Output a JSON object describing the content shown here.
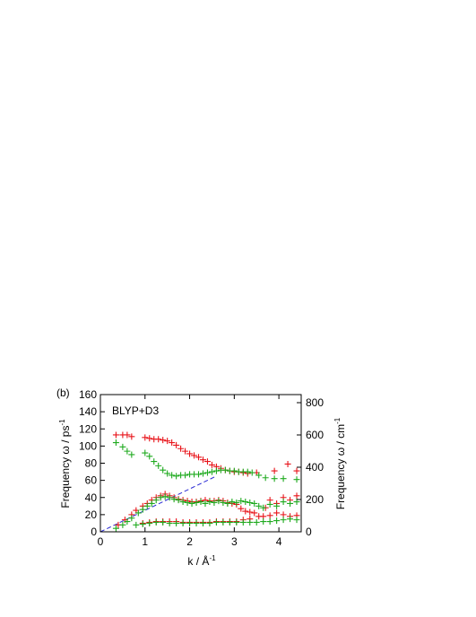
{
  "chart_data": {
    "type": "scatter",
    "panel_label": "(b)",
    "annotation": "BLYP+D3",
    "xlabel": "k / Å",
    "xlabel_sup": "-1",
    "ylabel": "Frequency ω / ps",
    "ylabel_sup": "-1",
    "y2label": "Frequency ω / cm",
    "y2label_sup": "-1",
    "xlim": [
      0,
      4.5
    ],
    "ylim": [
      0,
      160
    ],
    "y2lim": [
      0,
      850
    ],
    "xticks": [
      0,
      1,
      2,
      3,
      4
    ],
    "yticks": [
      0,
      20,
      40,
      60,
      80,
      100,
      120,
      140,
      160
    ],
    "y2ticks": [
      0,
      200,
      400,
      600,
      800
    ],
    "grid": false,
    "series": [
      {
        "color": "#e8141a",
        "marker": "plus",
        "points": [
          [
            0.35,
            113
          ],
          [
            0.5,
            113
          ],
          [
            0.6,
            113
          ],
          [
            0.7,
            111
          ],
          [
            0.4,
            8
          ],
          [
            0.55,
            14
          ],
          [
            0.7,
            20
          ],
          [
            0.8,
            25
          ],
          [
            0.95,
            30
          ],
          [
            1.05,
            33
          ],
          [
            1.15,
            37
          ],
          [
            1.25,
            40
          ],
          [
            1.35,
            42
          ],
          [
            1.45,
            44
          ],
          [
            1.55,
            42
          ],
          [
            1.65,
            40
          ],
          [
            1.75,
            38
          ],
          [
            1.85,
            37
          ],
          [
            1.95,
            36
          ],
          [
            2.05,
            35
          ],
          [
            2.15,
            35
          ],
          [
            2.25,
            36
          ],
          [
            2.35,
            37
          ],
          [
            2.45,
            36
          ],
          [
            2.55,
            36
          ],
          [
            2.65,
            37
          ],
          [
            2.75,
            36
          ],
          [
            2.85,
            34
          ],
          [
            2.95,
            33
          ],
          [
            3.05,
            32
          ],
          [
            3.15,
            27
          ],
          [
            3.25,
            24
          ],
          [
            3.35,
            23
          ],
          [
            3.45,
            22
          ],
          [
            3.55,
            18
          ],
          [
            3.65,
            18
          ],
          [
            3.8,
            19
          ],
          [
            3.95,
            22
          ],
          [
            4.1,
            20
          ],
          [
            4.25,
            18
          ],
          [
            4.4,
            19
          ],
          [
            1.0,
            110
          ],
          [
            1.1,
            109
          ],
          [
            1.2,
            108
          ],
          [
            1.3,
            108
          ],
          [
            1.4,
            107
          ],
          [
            1.5,
            106
          ],
          [
            1.6,
            104
          ],
          [
            1.7,
            101
          ],
          [
            1.8,
            97
          ],
          [
            1.9,
            94
          ],
          [
            2.0,
            91
          ],
          [
            2.1,
            89
          ],
          [
            2.2,
            87
          ],
          [
            2.3,
            84
          ],
          [
            2.4,
            82
          ],
          [
            2.5,
            78
          ],
          [
            2.6,
            76
          ],
          [
            2.7,
            74
          ],
          [
            2.8,
            72
          ],
          [
            2.9,
            71
          ],
          [
            3.0,
            70
          ],
          [
            3.1,
            70
          ],
          [
            3.2,
            69
          ],
          [
            3.3,
            68
          ],
          [
            3.5,
            69
          ],
          [
            3.9,
            71
          ],
          [
            4.2,
            79
          ],
          [
            4.4,
            71
          ],
          [
            0.95,
            10
          ],
          [
            1.1,
            11
          ],
          [
            1.25,
            12
          ],
          [
            1.4,
            12
          ],
          [
            1.55,
            12
          ],
          [
            1.7,
            12
          ],
          [
            1.85,
            11
          ],
          [
            2.0,
            11
          ],
          [
            2.15,
            11
          ],
          [
            2.3,
            11
          ],
          [
            2.45,
            11
          ],
          [
            2.6,
            12
          ],
          [
            2.75,
            12
          ],
          [
            2.9,
            12
          ],
          [
            3.05,
            12
          ],
          [
            3.2,
            14
          ],
          [
            3.35,
            15
          ],
          [
            3.7,
            28
          ],
          [
            3.8,
            37
          ],
          [
            3.95,
            33
          ],
          [
            4.1,
            40
          ],
          [
            4.25,
            37
          ],
          [
            4.4,
            42
          ]
        ]
      },
      {
        "color": "#1faa1f",
        "marker": "plus",
        "points": [
          [
            0.35,
            104
          ],
          [
            0.5,
            99
          ],
          [
            0.6,
            94
          ],
          [
            0.7,
            90
          ],
          [
            0.35,
            4
          ],
          [
            0.5,
            8
          ],
          [
            0.6,
            12
          ],
          [
            0.7,
            16
          ],
          [
            0.85,
            22
          ],
          [
            0.95,
            26
          ],
          [
            1.05,
            30
          ],
          [
            1.15,
            33
          ],
          [
            1.25,
            37
          ],
          [
            1.35,
            40
          ],
          [
            1.45,
            41
          ],
          [
            1.55,
            40
          ],
          [
            1.65,
            38
          ],
          [
            1.75,
            37
          ],
          [
            1.85,
            35
          ],
          [
            1.95,
            34
          ],
          [
            2.05,
            33
          ],
          [
            2.15,
            34
          ],
          [
            2.25,
            35
          ],
          [
            2.35,
            33
          ],
          [
            2.45,
            35
          ],
          [
            2.55,
            34
          ],
          [
            2.65,
            36
          ],
          [
            2.75,
            34
          ],
          [
            2.85,
            33
          ],
          [
            2.95,
            35
          ],
          [
            3.05,
            34
          ],
          [
            3.15,
            36
          ],
          [
            3.25,
            35
          ],
          [
            3.35,
            34
          ],
          [
            3.45,
            33
          ],
          [
            3.55,
            30
          ],
          [
            3.65,
            28
          ],
          [
            3.8,
            32
          ],
          [
            3.95,
            30
          ],
          [
            4.1,
            35
          ],
          [
            4.25,
            33
          ],
          [
            4.4,
            35
          ],
          [
            1.0,
            92
          ],
          [
            1.1,
            88
          ],
          [
            1.2,
            82
          ],
          [
            1.3,
            77
          ],
          [
            1.4,
            72
          ],
          [
            1.5,
            68
          ],
          [
            1.6,
            66
          ],
          [
            1.7,
            65
          ],
          [
            1.8,
            66
          ],
          [
            1.9,
            66
          ],
          [
            2.0,
            67
          ],
          [
            2.1,
            67
          ],
          [
            2.2,
            67
          ],
          [
            2.3,
            68
          ],
          [
            2.4,
            69
          ],
          [
            2.5,
            70
          ],
          [
            2.6,
            71
          ],
          [
            2.7,
            72
          ],
          [
            2.8,
            72
          ],
          [
            2.9,
            71
          ],
          [
            3.0,
            71
          ],
          [
            3.1,
            70
          ],
          [
            3.2,
            70
          ],
          [
            3.3,
            70
          ],
          [
            3.4,
            69
          ],
          [
            3.55,
            66
          ],
          [
            3.7,
            63
          ],
          [
            3.9,
            62
          ],
          [
            4.1,
            62
          ],
          [
            4.4,
            61
          ],
          [
            0.8,
            8
          ],
          [
            0.95,
            9
          ],
          [
            1.1,
            10
          ],
          [
            1.25,
            11
          ],
          [
            1.4,
            11
          ],
          [
            1.55,
            10
          ],
          [
            1.7,
            10
          ],
          [
            1.85,
            10
          ],
          [
            2.0,
            10
          ],
          [
            2.15,
            10
          ],
          [
            2.3,
            10
          ],
          [
            2.45,
            10
          ],
          [
            2.6,
            11
          ],
          [
            2.75,
            11
          ],
          [
            2.9,
            11
          ],
          [
            3.05,
            11
          ],
          [
            3.2,
            11
          ],
          [
            3.35,
            11
          ],
          [
            3.5,
            11
          ],
          [
            3.65,
            12
          ],
          [
            3.8,
            12
          ],
          [
            3.95,
            13
          ],
          [
            4.1,
            14
          ],
          [
            4.25,
            15
          ],
          [
            4.4,
            14
          ]
        ]
      }
    ],
    "reference_line": {
      "color": "#2a2ad4",
      "style": "dashed",
      "from": [
        0,
        0
      ],
      "to": [
        2.6,
        65
      ]
    }
  }
}
